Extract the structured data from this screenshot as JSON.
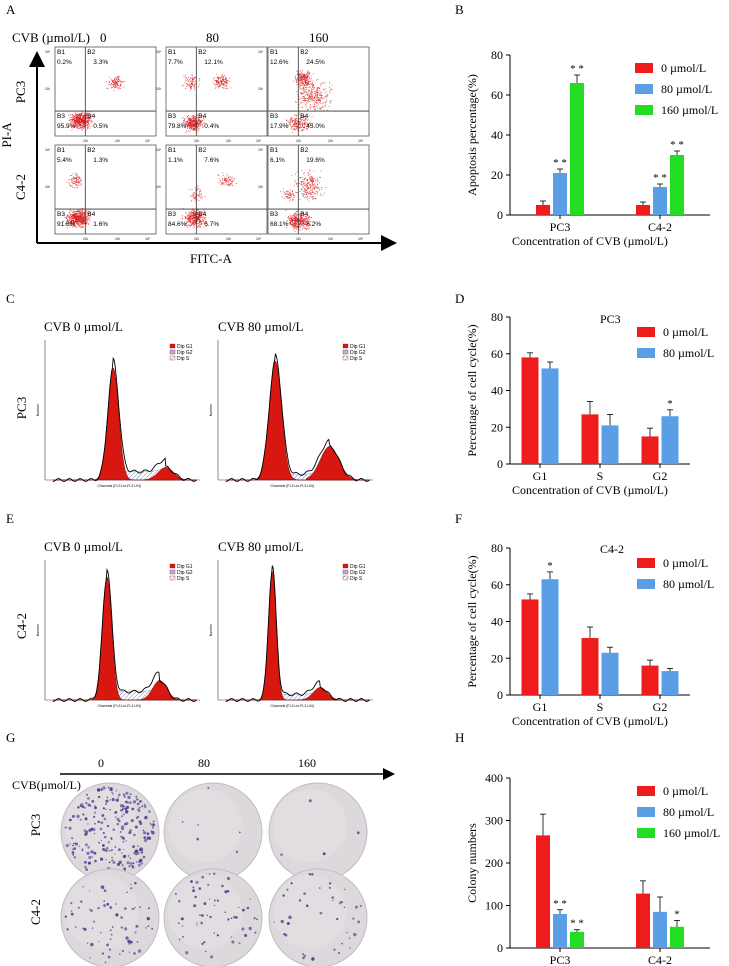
{
  "panels": {
    "a": {
      "label": "A",
      "cvb_label": "CVB (µmol/L)",
      "doses": [
        "0",
        "80",
        "160"
      ],
      "rows": [
        "PC3",
        "C4-2"
      ],
      "y_axis": "PI-A",
      "x_axis": "FITC-A",
      "tick_labels": [
        "10²",
        "10³",
        "10⁴"
      ],
      "quadrants": [
        [
          {
            "b1": "B1",
            "b1v": "0.2%",
            "b2": "B2",
            "b2v": "3.3%",
            "b3": "B3",
            "b3v": "95.9%",
            "b4": "B4",
            "b4v": "0.5%"
          },
          {
            "b1": "B1",
            "b1v": "7.7%",
            "b2": "B2",
            "b2v": "12.1%",
            "b3": "B3",
            "b3v": "79.8%",
            "b4": "B4",
            "b4v": "0.4%"
          },
          {
            "b1": "B1",
            "b1v": "12.6%",
            "b2": "B2",
            "b2v": "24.5%",
            "b3": "B3",
            "b3v": "17.9%",
            "b4": "B4",
            "b4v": "45.0%"
          }
        ],
        [
          {
            "b1": "B1",
            "b1v": "5.4%",
            "b2": "B2",
            "b2v": "1.3%",
            "b3": "B3",
            "b3v": "91.6%",
            "b4": "B4",
            "b4v": "1.6%"
          },
          {
            "b1": "B1",
            "b1v": "1.1%",
            "b2": "B2",
            "b2v": "7.6%",
            "b3": "B3",
            "b3v": "84.6%",
            "b4": "B4",
            "b4v": "6.7%"
          },
          {
            "b1": "B1",
            "b1v": "6.1%",
            "b2": "B2",
            "b2v": "19.6%",
            "b3": "B3",
            "b3v": "68.1%",
            "b4": "B4",
            "b4v": "6.2%"
          }
        ]
      ]
    },
    "c": {
      "label": "C",
      "titles": [
        "CVB 0 µmol/L",
        "CVB 80 µmol/L"
      ],
      "row": "PC3",
      "y_axis": "Number",
      "x_axis": "Channels (FL3 Lin-FL3 LIN)",
      "legend": [
        "Dip G1",
        "Dip G2",
        "Dip S"
      ]
    },
    "e": {
      "label": "E",
      "titles": [
        "CVB 0 µmol/L",
        "CVB 80 µmol/L"
      ],
      "row": "C4-2",
      "y_axis": "Number",
      "x_axis": "Channels (FL3 Lin-FL3 LIN)",
      "legend": [
        "Dip G1",
        "Dip G2",
        "Dip S"
      ]
    },
    "g": {
      "label": "G",
      "cvb_label": "CVB(µmol/L)",
      "doses": [
        "0",
        "80",
        "160"
      ],
      "rows": [
        "PC3",
        "C4-2"
      ]
    }
  },
  "colors": {
    "red": "#ee1c1c",
    "blue": "#5a9ee6",
    "green": "#22dd22",
    "dot": "#d81e1e",
    "hist_fill": "#d81810",
    "hatch": "#7c88c8",
    "dish": "#dcd8dc",
    "colony": "#4a3a8c"
  },
  "chart_data": [
    {
      "panel": "B",
      "type": "bar",
      "title": "",
      "ylabel": "Apoptosis percentage(%)",
      "xlabel": "Concentration of CVB  (µmol/L)",
      "ylim": [
        0,
        80
      ],
      "yticks": [
        "0",
        "20",
        "40",
        "60",
        "80"
      ],
      "categories": [
        "PC3",
        "C4-2"
      ],
      "series": [
        {
          "name": "0 µmol/L",
          "color": "#ee1c1c",
          "values": [
            5,
            5
          ],
          "errors": [
            2,
            1.5
          ],
          "sig": [
            "",
            ""
          ]
        },
        {
          "name": "80 µmol/L",
          "color": "#5a9ee6",
          "values": [
            21,
            14
          ],
          "errors": [
            2,
            1.5
          ],
          "sig": [
            "* *",
            "* *"
          ]
        },
        {
          "name": "160 µmol/L",
          "color": "#22dd22",
          "values": [
            66,
            30
          ],
          "errors": [
            4,
            2
          ],
          "sig": [
            "* *",
            "* *"
          ]
        }
      ]
    },
    {
      "panel": "D",
      "type": "bar",
      "title": "PC3",
      "ylabel": "Percentage of cell cycle(%)",
      "xlabel": "Concentration of CVB  (µmol/L)",
      "ylim": [
        0,
        80
      ],
      "yticks": [
        "0",
        "20",
        "40",
        "60",
        "80"
      ],
      "categories": [
        "G1",
        "S",
        "G2"
      ],
      "series": [
        {
          "name": "0 µmol/L",
          "color": "#ee1c1c",
          "values": [
            58,
            27,
            15
          ],
          "errors": [
            2.5,
            7,
            4.5
          ],
          "sig": [
            "",
            "",
            ""
          ]
        },
        {
          "name": "80 µmol/L",
          "color": "#5a9ee6",
          "values": [
            52,
            21,
            26
          ],
          "errors": [
            3.5,
            6,
            3.5
          ],
          "sig": [
            "",
            "",
            "*"
          ]
        }
      ]
    },
    {
      "panel": "F",
      "type": "bar",
      "title": "C4-2",
      "ylabel": "Percentage of cell cycle(%)",
      "xlabel": "Concentration of CVB  (µmol/L)",
      "ylim": [
        0,
        80
      ],
      "yticks": [
        "0",
        "20",
        "40",
        "60",
        "80"
      ],
      "categories": [
        "G1",
        "S",
        "G2"
      ],
      "series": [
        {
          "name": "0 µmol/L",
          "color": "#ee1c1c",
          "values": [
            52,
            31,
            16
          ],
          "errors": [
            3,
            6,
            3
          ],
          "sig": [
            "",
            "",
            ""
          ]
        },
        {
          "name": "80 µmol/L",
          "color": "#5a9ee6",
          "values": [
            63,
            23,
            13
          ],
          "errors": [
            4,
            3,
            1.5
          ],
          "sig": [
            "*",
            "",
            ""
          ]
        }
      ]
    },
    {
      "panel": "H",
      "type": "bar",
      "title": "",
      "ylabel": "Colony numbers",
      "xlabel": "Concentration of CVB  (µmol/L)",
      "ylim": [
        0,
        400
      ],
      "yticks": [
        "0",
        "100",
        "200",
        "300",
        "400"
      ],
      "categories": [
        "PC3",
        "C4-2"
      ],
      "series": [
        {
          "name": "0 µmol/L",
          "color": "#ee1c1c",
          "values": [
            265,
            128
          ],
          "errors": [
            50,
            30
          ],
          "sig": [
            "",
            ""
          ]
        },
        {
          "name": "80 µmol/L",
          "color": "#5a9ee6",
          "values": [
            80,
            85
          ],
          "errors": [
            10,
            35
          ],
          "sig": [
            "* *",
            ""
          ]
        },
        {
          "name": "160 µmol/L",
          "color": "#22dd22",
          "values": [
            38,
            50
          ],
          "errors": [
            5,
            15
          ],
          "sig": [
            "* *",
            "*"
          ]
        }
      ]
    }
  ]
}
